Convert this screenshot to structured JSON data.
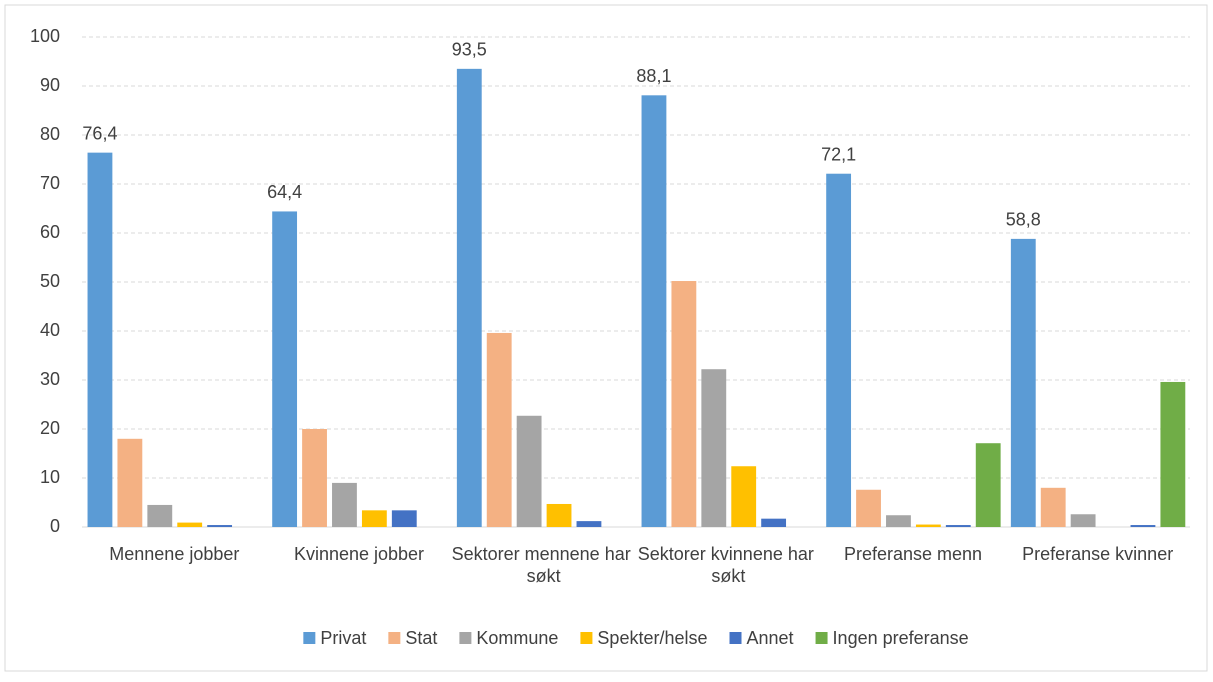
{
  "chart_data": {
    "type": "bar",
    "categories": [
      "Mennene jobber",
      "Kvinnene jobber",
      "Sektorer mennene har søkt",
      "Sektorer kvinnene har søkt",
      "Preferanse menn",
      "Preferanse kvinner"
    ],
    "series": [
      {
        "name": "Privat",
        "color": "#5b9bd5",
        "values": [
          76.4,
          64.4,
          93.5,
          88.1,
          72.1,
          58.8
        ],
        "value_labels": [
          "76,4",
          "64,4",
          "93,5",
          "88,1",
          "72,1",
          "58,8"
        ]
      },
      {
        "name": "Stat",
        "color": "#f4b183",
        "values": [
          18.0,
          20.0,
          39.6,
          50.2,
          7.6,
          8.0
        ]
      },
      {
        "name": "Kommune",
        "color": "#a5a5a5",
        "values": [
          4.5,
          9.0,
          22.7,
          32.2,
          2.4,
          2.6
        ]
      },
      {
        "name": "Spekter/helse",
        "color": "#ffc000",
        "values": [
          0.9,
          3.4,
          4.7,
          12.4,
          0.5,
          null
        ]
      },
      {
        "name": "Annet",
        "color": "#4472c4",
        "values": [
          0.4,
          3.4,
          1.2,
          1.7,
          0.4,
          0.4
        ]
      },
      {
        "name": "Ingen preferanse",
        "color": "#70ad47",
        "values": [
          null,
          null,
          null,
          null,
          17.1,
          29.6
        ]
      }
    ],
    "ylim": [
      0,
      100
    ],
    "yticks": [
      0,
      10,
      20,
      30,
      40,
      50,
      60,
      70,
      80,
      90,
      100
    ],
    "grid": true,
    "legend": "bottom"
  }
}
